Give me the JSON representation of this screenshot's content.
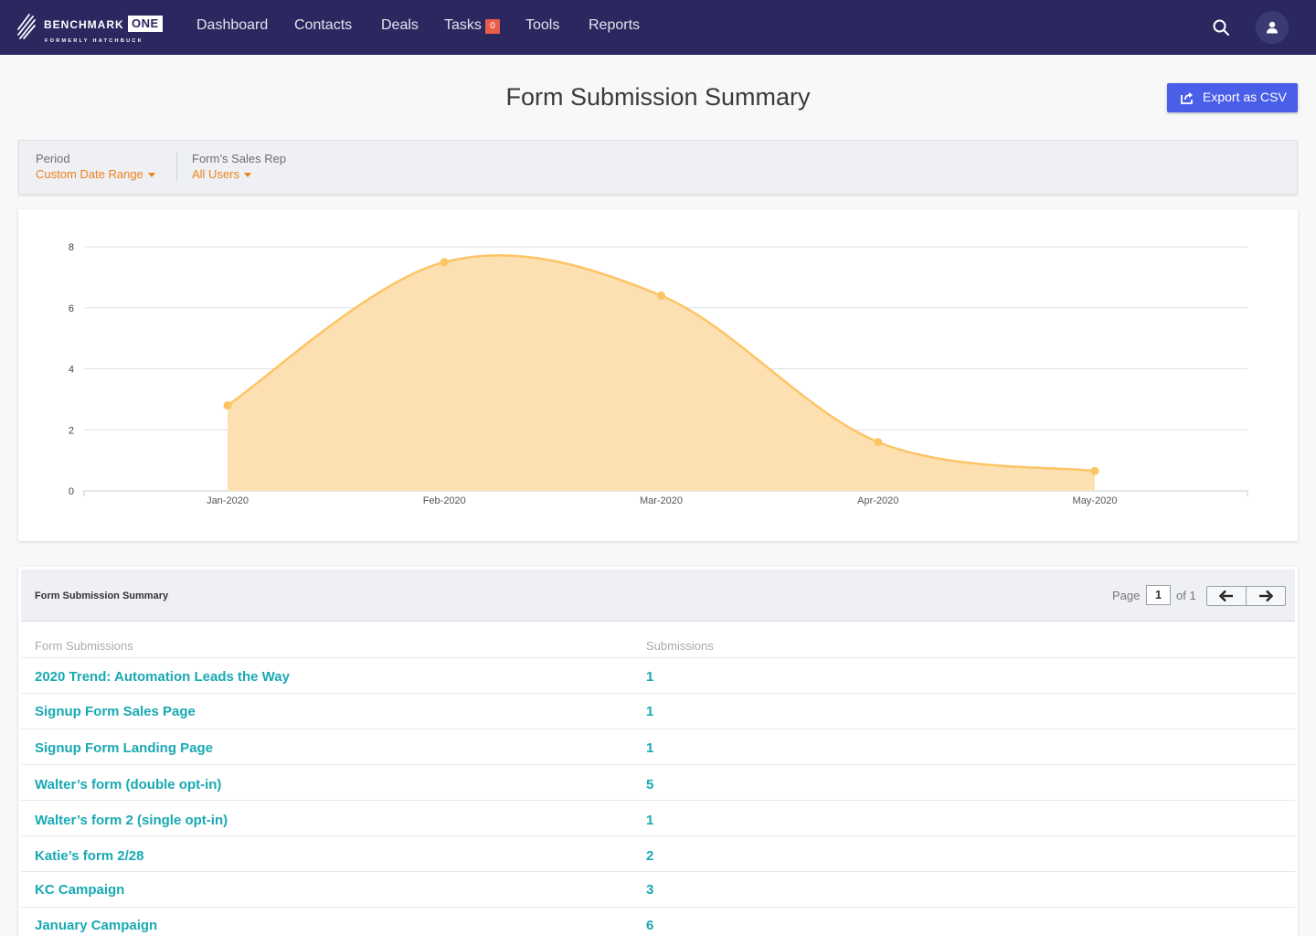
{
  "brand": {
    "name": "BENCHMARK",
    "name_suffix": "ONE",
    "tagline": "FORMERLY HATCHBUCK"
  },
  "nav": {
    "items": [
      {
        "label": "Dashboard"
      },
      {
        "label": "Contacts"
      },
      {
        "label": "Deals"
      },
      {
        "label": "Tasks"
      },
      {
        "label": "Tools"
      },
      {
        "label": "Reports"
      }
    ],
    "tasks_badge": "0",
    "icons": [
      "search-icon",
      "user-icon"
    ]
  },
  "header": {
    "title": "Form Submission Summary",
    "export_label": "Export as CSV",
    "export_icon": "share-export-icon"
  },
  "filters": {
    "period": {
      "label": "Period",
      "value": "Custom Date Range"
    },
    "sales_rep": {
      "label": "Form’s Sales Rep",
      "value": "All Users"
    }
  },
  "chart_data": {
    "type": "area",
    "categories": [
      "Jan-2020",
      "Feb-2020",
      "Mar-2020",
      "Apr-2020",
      "May-2020"
    ],
    "series": [
      {
        "values": [
          2.8,
          7.5,
          6.4,
          1.6,
          0.65
        ],
        "color": "#fcc465",
        "fill": "#fde0b1"
      }
    ],
    "yticks": [
      "0",
      "2",
      "4",
      "6",
      "8"
    ],
    "ylim": [
      0,
      8
    ],
    "grid": true,
    "legend": "none"
  },
  "table": {
    "title": "Form Submission Summary",
    "page_label": "Page",
    "page_current": "1",
    "page_total_label": "of 1",
    "columns": [
      "Form Submissions",
      "Submissions"
    ],
    "rows": [
      {
        "name": "2020 Trend: Automation Leads the Way",
        "count": "1"
      },
      {
        "name": "Signup Form Sales Page",
        "count": "1"
      },
      {
        "name": "Signup Form Landing Page",
        "count": "1"
      },
      {
        "name": "Walter’s form (double opt-in)",
        "count": "5"
      },
      {
        "name": "Walter’s form 2 (single opt-in)",
        "count": "1"
      },
      {
        "name": "Katie’s form 2/28",
        "count": "2"
      },
      {
        "name": "KC Campaign",
        "count": "3"
      },
      {
        "name": "January Campaign",
        "count": "6"
      }
    ]
  }
}
